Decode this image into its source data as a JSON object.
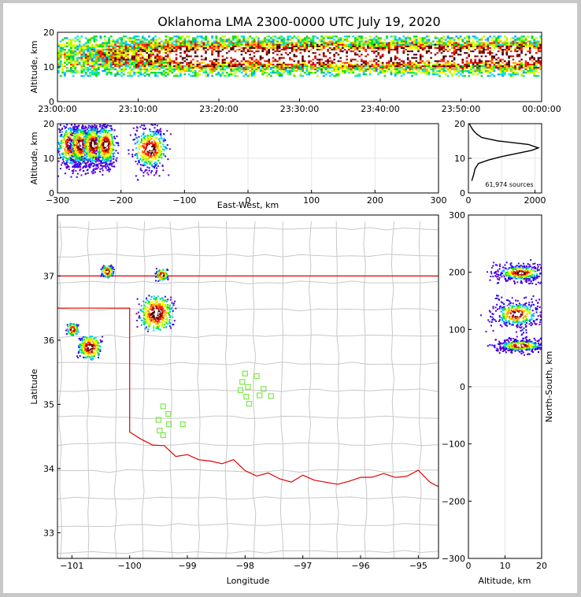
{
  "title": "Oklahoma LMA 2300-0000 UTC July 19, 2020",
  "colors": {
    "frame": "#c8c8c8",
    "border": "#e00000",
    "county": "#c8c8c8",
    "stations": "#7de84a",
    "density_ramp": [
      "#6a00c8",
      "#2000ff",
      "#00a0ff",
      "#00e0e0",
      "#00e000",
      "#b0ff00",
      "#ffff00",
      "#ffa000",
      "#ff2000",
      "#c00000",
      "#400000",
      "#ffffff"
    ]
  },
  "chart_data": [
    {
      "type": "heatmap",
      "name": "altitude-time",
      "title": "",
      "ylabel": "Altitude, km",
      "xlabel": "",
      "xticks": [
        "23:00:00",
        "23:10:00",
        "23:20:00",
        "23:30:00",
        "23:40:00",
        "23:50:00",
        "00:00:00"
      ],
      "xlim_minutes": [
        0,
        60
      ],
      "ylim": [
        0,
        20
      ],
      "yticks": [
        0,
        10,
        20
      ],
      "core_altitude_km": 13
    },
    {
      "type": "heatmap",
      "name": "altitude-eastwest",
      "ylabel": "Altitude, km",
      "xlabel": "East-West, km",
      "xlim": [
        -300,
        300
      ],
      "xticks": [
        -300,
        -200,
        -100,
        0,
        100,
        200,
        300
      ],
      "ylim": [
        0,
        20
      ],
      "yticks": [
        0,
        10,
        20
      ],
      "clusters": [
        {
          "x": -280,
          "width": 20,
          "z": 14
        },
        {
          "x": -265,
          "width": 15,
          "z": 14
        },
        {
          "x": -245,
          "width": 15,
          "z": 14
        },
        {
          "x": -225,
          "width": 15,
          "z": 14
        },
        {
          "x": -155,
          "width": 25,
          "z": 13
        }
      ]
    },
    {
      "type": "line",
      "name": "altitude-histogram",
      "annotation": "61,974 sources",
      "xlim": [
        0,
        2200
      ],
      "xticks": [
        0,
        2000
      ],
      "ylim": [
        0,
        20
      ],
      "yticks": [
        0,
        10,
        20
      ],
      "x": [
        100,
        150,
        200,
        300,
        600,
        1000,
        1500,
        1900,
        2100,
        1800,
        900,
        400,
        250,
        150,
        80,
        50,
        30
      ],
      "y": [
        3.5,
        5,
        7,
        8.5,
        9.5,
        10.5,
        11.5,
        12.3,
        13,
        14,
        15,
        16,
        17,
        18,
        19,
        19.6,
        20
      ]
    },
    {
      "type": "heatmap",
      "name": "plan-view",
      "xlabel": "Longitude",
      "ylabel": "Latitude",
      "xlim": [
        -101.25,
        -94.65
      ],
      "ylim": [
        32.6,
        37.95
      ],
      "xticks": [
        -101,
        -100,
        -99,
        -98,
        -97,
        -96,
        -95
      ],
      "yticks": [
        33,
        34,
        35,
        36,
        37
      ],
      "storms": [
        {
          "lon": -100.4,
          "lat": 37.08,
          "size": 1
        },
        {
          "lon": -99.45,
          "lat": 37.03,
          "size": 1
        },
        {
          "lon": -99.55,
          "lat": 36.43,
          "size": 3
        },
        {
          "lon": -101.0,
          "lat": 36.18,
          "size": 1
        },
        {
          "lon": -100.7,
          "lat": 35.9,
          "size": 2
        }
      ],
      "stations": [
        {
          "lon": -98.0,
          "lat": 35.48
        },
        {
          "lon": -97.8,
          "lat": 35.44
        },
        {
          "lon": -98.05,
          "lat": 35.35
        },
        {
          "lon": -97.95,
          "lat": 35.27
        },
        {
          "lon": -97.68,
          "lat": 35.24
        },
        {
          "lon": -98.08,
          "lat": 35.22
        },
        {
          "lon": -97.75,
          "lat": 35.14
        },
        {
          "lon": -97.55,
          "lat": 35.13
        },
        {
          "lon": -97.98,
          "lat": 35.12
        },
        {
          "lon": -97.93,
          "lat": 35.01
        },
        {
          "lon": -99.42,
          "lat": 34.97
        },
        {
          "lon": -99.33,
          "lat": 34.85
        },
        {
          "lon": -99.5,
          "lat": 34.76
        },
        {
          "lon": -99.08,
          "lat": 34.69
        },
        {
          "lon": -99.32,
          "lat": 34.69
        },
        {
          "lon": -99.48,
          "lat": 34.59
        },
        {
          "lon": -99.42,
          "lat": 34.52
        }
      ]
    },
    {
      "type": "heatmap",
      "name": "northsouth-altitude",
      "xlabel": "Altitude, km",
      "ylabel": "North-South, km",
      "xlim": [
        0,
        20
      ],
      "xticks": [
        0,
        10,
        20
      ],
      "ylim": [
        -300,
        300
      ],
      "yticks": [
        -300,
        -200,
        -100,
        0,
        100,
        200,
        300
      ],
      "clusters": [
        {
          "y": 200,
          "height": 20,
          "z": 14
        },
        {
          "y": 128,
          "height": 35,
          "z": 13
        },
        {
          "y": 73,
          "height": 15,
          "z": 14
        }
      ]
    }
  ]
}
